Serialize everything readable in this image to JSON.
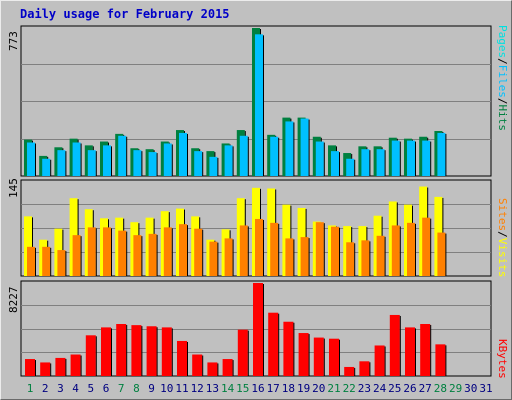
{
  "chart_title": "Daily usage for February 2015",
  "colors": {
    "pages": "#00e0e0",
    "pages_dark": "#006a6a",
    "files": "#00c0ff",
    "hits": "#008040",
    "visits": "#ffff00",
    "sites": "#ff8000",
    "kbytes": "#ff0000",
    "weekend_day": "#008040",
    "weekday": "#000080",
    "title": "#0000c8"
  },
  "right_labels": {
    "top": [
      "Pages",
      "Files",
      "Hits"
    ],
    "top_sep": "/",
    "middle": [
      "Sites",
      "Visits"
    ],
    "bottom": "KBytes"
  },
  "y_max_labels": {
    "hits": "773",
    "visits": "145",
    "kbytes": "8227"
  },
  "chart_data": {
    "type": "bar",
    "title": "Daily usage for February 2015",
    "categories": [
      "1",
      "2",
      "3",
      "4",
      "5",
      "6",
      "7",
      "8",
      "9",
      "10",
      "11",
      "12",
      "13",
      "14",
      "15",
      "16",
      "17",
      "18",
      "19",
      "20",
      "21",
      "22",
      "23",
      "24",
      "25",
      "26",
      "27",
      "28",
      "29",
      "30",
      "31"
    ],
    "weekend_days": [
      "1",
      "7",
      "8",
      "14",
      "15",
      "21",
      "22",
      "28",
      "29"
    ],
    "panels": [
      {
        "name": "hits-files-pages",
        "ymax": 773,
        "series": [
          {
            "name": "Hits",
            "values": [
              190,
              105,
              150,
              195,
              160,
              180,
              220,
              145,
              140,
              180,
              240,
              145,
              130,
              170,
              240,
              773,
              215,
              305,
              305,
              205,
              160,
              120,
              155,
              155,
              200,
              195,
              205,
              235,
              null,
              null,
              null
            ]
          },
          {
            "name": "Files",
            "values": [
              175,
              90,
              135,
              175,
              135,
              160,
              210,
              135,
              125,
              170,
              225,
              130,
              100,
              160,
              210,
              740,
              205,
              285,
              300,
              180,
              130,
              90,
              140,
              140,
              185,
              185,
              185,
              225,
              null,
              null,
              null
            ]
          },
          {
            "name": "Pages",
            "values": [
              40,
              20,
              30,
              40,
              35,
              35,
              45,
              30,
              30,
              35,
              50,
              30,
              25,
              35,
              45,
              160,
              45,
              60,
              60,
              40,
              35,
              25,
              30,
              30,
              40,
              40,
              40,
              50,
              null,
              null,
              null
            ]
          }
        ]
      },
      {
        "name": "visits-sites",
        "ymax": 145,
        "series": [
          {
            "name": "Visits",
            "values": [
              92,
              56,
              73,
              120,
              103,
              89,
              90,
              83,
              90,
              100,
              104,
              92,
              56,
              72,
              120,
              136,
              135,
              110,
              105,
              84,
              78,
              77,
              77,
              93,
              115,
              110,
              138,
              122,
              null,
              null,
              null
            ]
          },
          {
            "name": "Sites",
            "values": [
              45,
              45,
              40,
              63,
              75,
              75,
              70,
              63,
              65,
              75,
              80,
              73,
              53,
              58,
              78,
              88,
              82,
              58,
              60,
              83,
              76,
              52,
              55,
              62,
              78,
              82,
              90,
              67,
              null,
              null,
              null
            ]
          }
        ]
      },
      {
        "name": "kbytes",
        "ymax": 8227,
        "series": [
          {
            "name": "KBytes",
            "values": [
              1500,
              1200,
              1600,
              1900,
              3600,
              4300,
              4600,
              4500,
              4400,
              4300,
              3100,
              1900,
              1200,
              1500,
              4100,
              8227,
              5600,
              4800,
              3800,
              3400,
              3300,
              800,
              1300,
              2700,
              5400,
              4300,
              4600,
              2800,
              null,
              null,
              null
            ]
          }
        ]
      }
    ]
  }
}
